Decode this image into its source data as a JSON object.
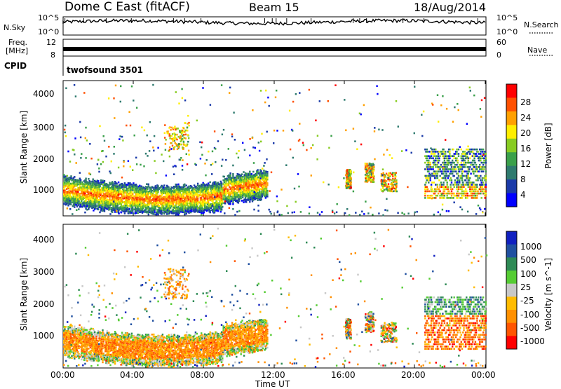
{
  "header": {
    "station": "Dome C East (fitACF)",
    "beam": "Beam 15",
    "date": "18/Aug/2014"
  },
  "side_labels": {
    "nsky": "N.Sky",
    "freq_line1": "Freq.",
    "freq_line2": "[MHz]",
    "cpid": "CPID",
    "nsearch": "N.Search",
    "nave": "Nave"
  },
  "cpid_value": "twofsound 3501",
  "colors": {
    "power": [
      "#0000ff",
      "#1a3aa8",
      "#2e7a6e",
      "#3aa04a",
      "#88cc22",
      "#ffee00",
      "#ffa000",
      "#ff5000",
      "#ff0000"
    ],
    "velocity": [
      "#ff0000",
      "#ff5500",
      "#ff9000",
      "#ffbb00",
      "#c8c8c8",
      "#55cc33",
      "#2e8a55",
      "#2050a0",
      "#1020c0"
    ]
  },
  "chart_data": [
    {
      "type": "line",
      "name": "nsky-nsearch",
      "yticks_left": [
        "10^5",
        "10^0"
      ],
      "yticks_right": [
        "10^5",
        "10^0"
      ]
    },
    {
      "type": "line",
      "name": "freq-nave",
      "yticks_left": [
        "12",
        "8"
      ],
      "yticks_right": [
        "60",
        "0"
      ]
    },
    {
      "type": "heatmap",
      "name": "power",
      "ylabel": "Slant Range [km]",
      "yticks": [
        "4000",
        "3000",
        "2000",
        "1000"
      ],
      "ylim": [
        200,
        4500
      ],
      "xlim": [
        0,
        24
      ],
      "colorbar_label": "Power [dB]",
      "colorbar_ticks": [
        "28",
        "24",
        "20",
        "16",
        "12",
        "8",
        "4"
      ]
    },
    {
      "type": "heatmap",
      "name": "velocity",
      "ylabel": "Slant Range [km]",
      "yticks": [
        "4000",
        "3000",
        "2000",
        "1000"
      ],
      "ylim": [
        200,
        4500
      ],
      "xlim": [
        0,
        24
      ],
      "colorbar_label": "Velocity [m s^-1]",
      "colorbar_ticks": [
        "1000",
        "500",
        "100",
        "25",
        "-25",
        "-100",
        "-500",
        "-1000"
      ]
    }
  ],
  "xaxis": {
    "ticks": [
      "00:00",
      "04:00",
      "08:00",
      "12:00",
      "16:00",
      "20:00",
      "00:00"
    ],
    "label": "Time UT"
  }
}
